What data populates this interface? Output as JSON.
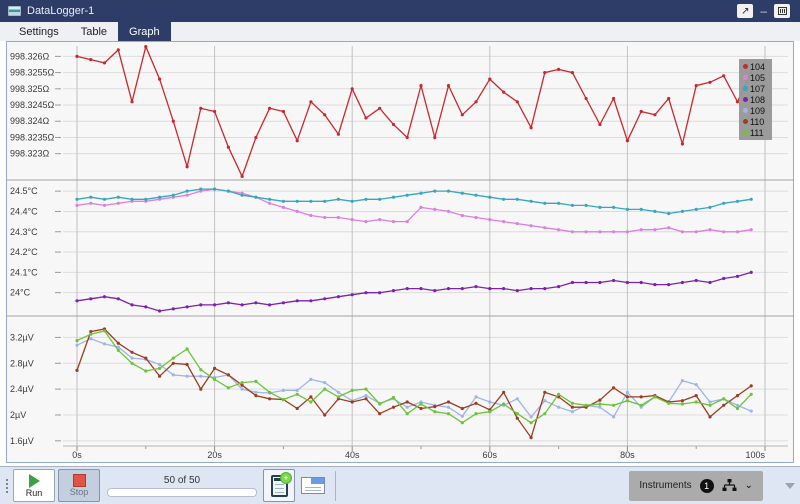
{
  "window": {
    "title": "DataLogger-1",
    "controls": {
      "popout": "↗",
      "minimize": "–"
    }
  },
  "tabs": [
    {
      "label": "Settings",
      "active": false
    },
    {
      "label": "Table",
      "active": false
    },
    {
      "label": "Graph",
      "active": true
    }
  ],
  "chart_data": {
    "type": "line",
    "x_unit": "s",
    "sample_interval_s": 2,
    "x_range": [
      0,
      100
    ],
    "x_ticks": [
      {
        "t": 0,
        "label": "0s"
      },
      {
        "t": 20,
        "label": "20s"
      },
      {
        "t": 40,
        "label": "40s"
      },
      {
        "t": 60,
        "label": "60s"
      },
      {
        "t": 80,
        "label": "80s"
      },
      {
        "t": 100,
        "label": "100s"
      }
    ],
    "x_minor_ticks": [
      10,
      30,
      50,
      70,
      90
    ],
    "grid": true,
    "legend_position": "top-right",
    "subplots": [
      {
        "unit": "Ω",
        "ylim": [
          998.32225,
          998.32632
        ],
        "ticks": [
          {
            "v": 998.326,
            "label": "998.326Ω"
          },
          {
            "v": 998.3255,
            "label": "998.3255Ω"
          },
          {
            "v": 998.325,
            "label": "998.325Ω"
          },
          {
            "v": 998.3245,
            "label": "998.3245Ω"
          },
          {
            "v": 998.324,
            "label": "998.324Ω"
          },
          {
            "v": 998.3235,
            "label": "998.3235Ω"
          },
          {
            "v": 998.323,
            "label": "998.323Ω"
          }
        ]
      },
      {
        "unit": "°C",
        "ylim": [
          23.895,
          24.545
        ],
        "ticks": [
          {
            "v": 24.5,
            "label": "24.5°C"
          },
          {
            "v": 24.4,
            "label": "24.4°C"
          },
          {
            "v": 24.3,
            "label": "24.3°C"
          },
          {
            "v": 24.2,
            "label": "24.2°C"
          },
          {
            "v": 24.1,
            "label": "24.1°C"
          },
          {
            "v": 24.0,
            "label": "24°C"
          }
        ]
      },
      {
        "unit": "µV",
        "ylim": [
          1.52,
          3.5
        ],
        "ticks": [
          {
            "v": 3.2,
            "label": "3.2µV"
          },
          {
            "v": 2.8,
            "label": "2.8µV"
          },
          {
            "v": 2.4,
            "label": "2.4µV"
          },
          {
            "v": 2.0,
            "label": "2µV"
          },
          {
            "v": 1.6,
            "label": "1.6µV"
          }
        ]
      }
    ],
    "series": [
      {
        "name": "104",
        "color": "#c8292e",
        "subplot": 0,
        "values": [
          998.326,
          998.3259,
          998.3258,
          998.3262,
          998.3246,
          998.3263,
          998.3253,
          998.324,
          998.3226,
          998.3244,
          998.3243,
          998.3232,
          998.3223,
          998.3235,
          998.3244,
          998.3243,
          998.3234,
          998.3246,
          998.3242,
          998.3236,
          998.325,
          998.3241,
          998.3244,
          998.3239,
          998.3235,
          998.3251,
          998.3235,
          998.3251,
          998.3242,
          998.3246,
          998.3253,
          998.3249,
          998.3246,
          998.3238,
          998.3255,
          998.3256,
          998.3255,
          998.3247,
          998.3239,
          998.3247,
          998.3234,
          998.3243,
          998.3242,
          998.3247,
          998.3233,
          998.3251,
          998.3252,
          998.3254,
          998.3246,
          998.3255
        ]
      },
      {
        "name": "105",
        "color": "#d783dd",
        "subplot": 1,
        "values": [
          24.43,
          24.44,
          24.43,
          24.44,
          24.45,
          24.45,
          24.46,
          24.47,
          24.48,
          24.5,
          24.51,
          24.5,
          24.49,
          24.47,
          24.44,
          24.42,
          24.4,
          24.38,
          24.37,
          24.37,
          24.36,
          24.35,
          24.36,
          24.35,
          24.35,
          24.42,
          24.41,
          24.4,
          24.38,
          24.37,
          24.36,
          24.35,
          24.34,
          24.33,
          24.32,
          24.31,
          24.3,
          24.3,
          24.3,
          24.3,
          24.3,
          24.31,
          24.31,
          24.32,
          24.3,
          24.3,
          24.31,
          24.3,
          24.3,
          24.31
        ]
      },
      {
        "name": "107",
        "color": "#3aa6bc",
        "subplot": 1,
        "values": [
          24.46,
          24.47,
          24.46,
          24.47,
          24.46,
          24.46,
          24.47,
          24.48,
          24.5,
          24.51,
          24.51,
          24.5,
          24.48,
          24.47,
          24.46,
          24.45,
          24.45,
          24.45,
          24.45,
          24.46,
          24.45,
          24.46,
          24.46,
          24.47,
          24.48,
          24.49,
          24.5,
          24.5,
          24.49,
          24.48,
          24.47,
          24.46,
          24.46,
          24.45,
          24.44,
          24.44,
          24.43,
          24.43,
          24.42,
          24.42,
          24.41,
          24.41,
          24.4,
          24.39,
          24.4,
          24.41,
          24.42,
          24.44,
          24.45,
          24.46
        ]
      },
      {
        "name": "108",
        "color": "#7d22ad",
        "subplot": 1,
        "values": [
          23.96,
          23.97,
          23.98,
          23.97,
          23.94,
          23.93,
          23.91,
          23.92,
          23.93,
          23.94,
          23.94,
          23.95,
          23.94,
          23.95,
          23.94,
          23.95,
          23.96,
          23.96,
          23.97,
          23.98,
          23.99,
          24.0,
          24.0,
          24.01,
          24.02,
          24.02,
          24.01,
          24.02,
          24.02,
          24.03,
          24.02,
          24.02,
          24.01,
          24.02,
          24.02,
          24.03,
          24.05,
          24.05,
          24.05,
          24.06,
          24.05,
          24.05,
          24.04,
          24.04,
          24.05,
          24.06,
          24.05,
          24.07,
          24.08,
          24.1
        ]
      },
      {
        "name": "109",
        "color": "#9fb4ea",
        "subplot": 2,
        "values": [
          3.08,
          3.18,
          3.1,
          3.05,
          2.88,
          2.86,
          2.78,
          2.62,
          2.6,
          2.6,
          2.58,
          2.62,
          2.4,
          2.35,
          2.34,
          2.38,
          2.38,
          2.55,
          2.5,
          2.35,
          2.22,
          2.3,
          2.18,
          2.25,
          2.12,
          2.2,
          2.15,
          2.12,
          1.98,
          2.28,
          2.2,
          2.15,
          2.25,
          1.97,
          2.22,
          2.12,
          2.05,
          2.15,
          2.12,
          1.97,
          2.35,
          2.12,
          2.28,
          2.2,
          2.53,
          2.47,
          2.2,
          2.25,
          2.15,
          2.06
        ]
      },
      {
        "name": "110",
        "color": "#9c3d22",
        "subplot": 2,
        "values": [
          2.69,
          3.29,
          3.33,
          3.11,
          2.97,
          2.88,
          2.6,
          2.8,
          2.78,
          2.4,
          2.72,
          2.62,
          2.46,
          2.3,
          2.25,
          2.24,
          2.1,
          2.28,
          2.0,
          2.25,
          2.2,
          2.25,
          2.02,
          2.12,
          2.2,
          2.1,
          2.13,
          2.2,
          2.1,
          2.18,
          2.08,
          2.35,
          1.95,
          1.65,
          2.35,
          2.28,
          2.12,
          2.12,
          2.23,
          2.42,
          2.28,
          2.28,
          2.3,
          2.2,
          2.22,
          2.3,
          1.97,
          2.15,
          2.3,
          2.45
        ]
      },
      {
        "name": "111",
        "color": "#6cc43a",
        "subplot": 2,
        "values": [
          3.15,
          3.25,
          3.3,
          3.0,
          2.8,
          2.68,
          2.72,
          2.88,
          3.02,
          2.7,
          2.55,
          2.42,
          2.5,
          2.52,
          2.35,
          2.24,
          2.32,
          2.2,
          2.4,
          2.28,
          2.38,
          2.4,
          2.17,
          2.27,
          2.02,
          2.17,
          2.05,
          2.02,
          1.88,
          2.02,
          2.05,
          2.17,
          2.02,
          1.88,
          2.02,
          2.32,
          2.18,
          2.15,
          2.17,
          2.15,
          2.22,
          2.15,
          2.28,
          2.18,
          2.17,
          2.2,
          2.15,
          2.25,
          2.1,
          2.32
        ]
      }
    ]
  },
  "toolbar": {
    "run_label": "Run",
    "stop_label": "Stop",
    "progress_text": "50 of 50",
    "instruments_label": "Instruments",
    "instruments_count": "1"
  },
  "colors": {
    "titlebar": "#2e3c68",
    "active_tab": "#2e3c68",
    "toolbar_bg": "#dde6f2",
    "chart_bg": "#f7f7f7",
    "legend_bg": "#969696"
  }
}
